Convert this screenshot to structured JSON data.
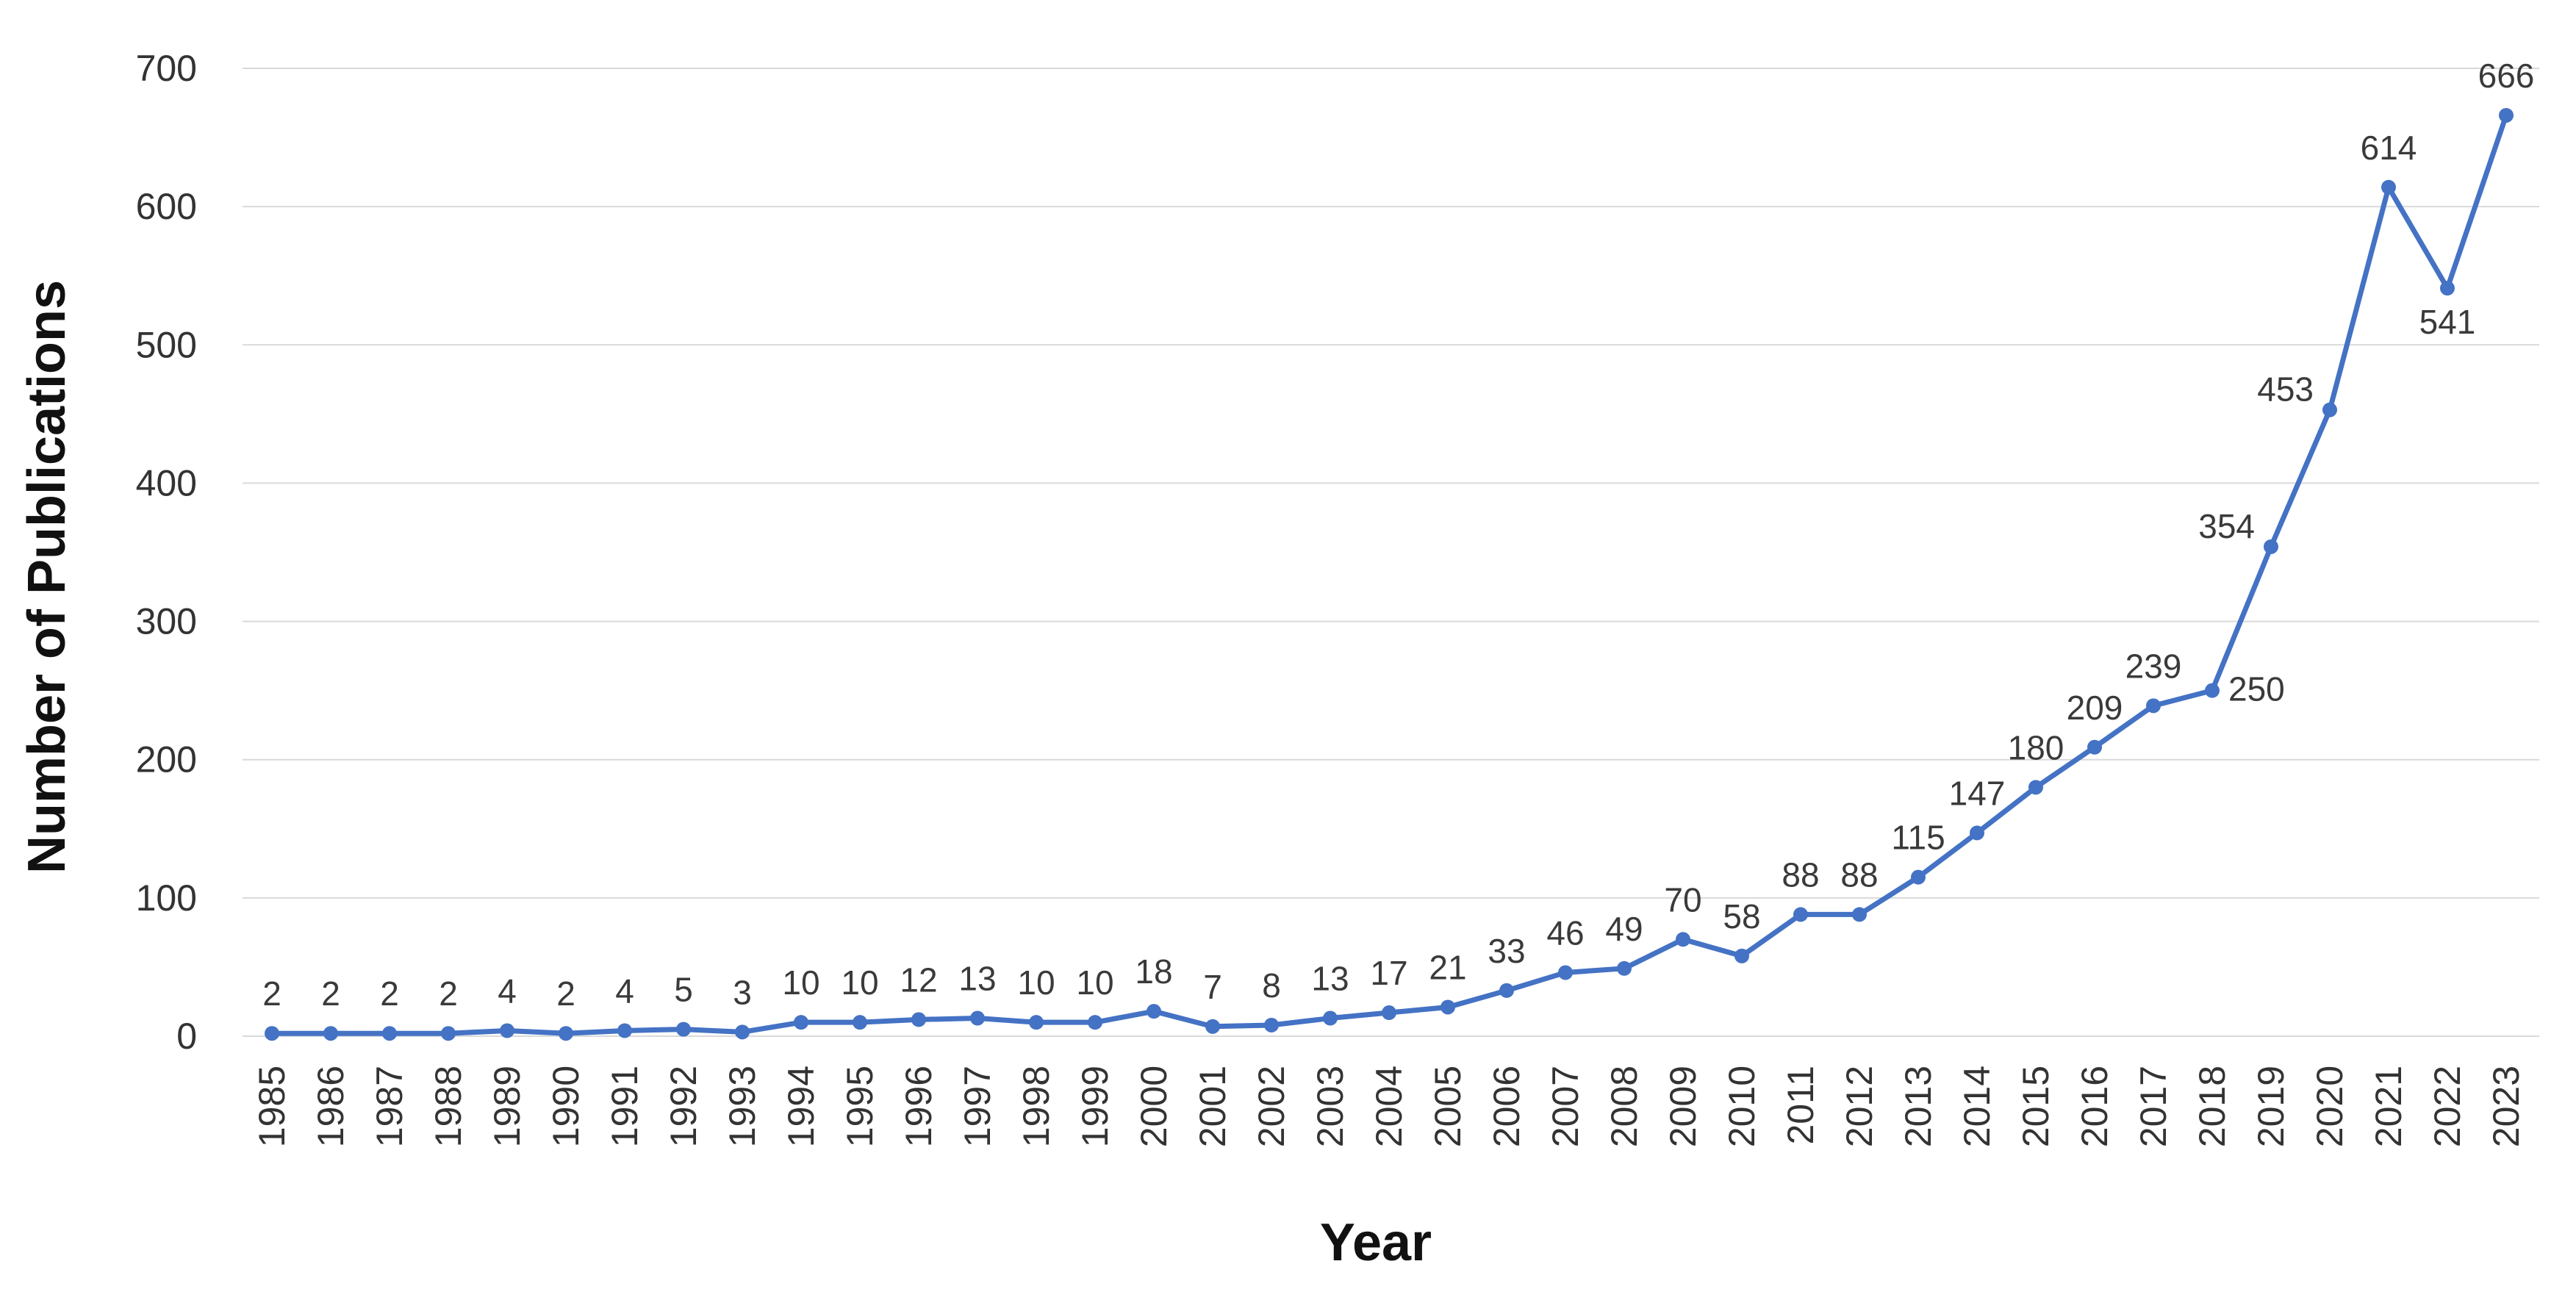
{
  "chart_data": {
    "type": "line",
    "title": "",
    "xlabel": "Year",
    "ylabel": "Number of Publications",
    "ylim": [
      0,
      700
    ],
    "yticks": [
      0,
      100,
      200,
      300,
      400,
      500,
      600,
      700
    ],
    "grid": true,
    "legend": "none",
    "series_color": "#4472c4",
    "x": [
      "1985",
      "1986",
      "1987",
      "1988",
      "1989",
      "1990",
      "1991",
      "1992",
      "1993",
      "1994",
      "1995",
      "1996",
      "1997",
      "1998",
      "1999",
      "2000",
      "2001",
      "2002",
      "2003",
      "2004",
      "2005",
      "2006",
      "2007",
      "2008",
      "2009",
      "2010",
      "2011",
      "2012",
      "2013",
      "2014",
      "2015",
      "2016",
      "2017",
      "2018",
      "2019",
      "2020",
      "2021",
      "2022",
      "2023"
    ],
    "series": [
      {
        "values": [
          2,
          2,
          2,
          2,
          4,
          2,
          4,
          5,
          3,
          10,
          10,
          12,
          13,
          10,
          10,
          18,
          7,
          8,
          13,
          17,
          21,
          33,
          46,
          49,
          70,
          58,
          88,
          88,
          115,
          147,
          180,
          209,
          239,
          250,
          354,
          453,
          614,
          541,
          666
        ]
      }
    ]
  }
}
